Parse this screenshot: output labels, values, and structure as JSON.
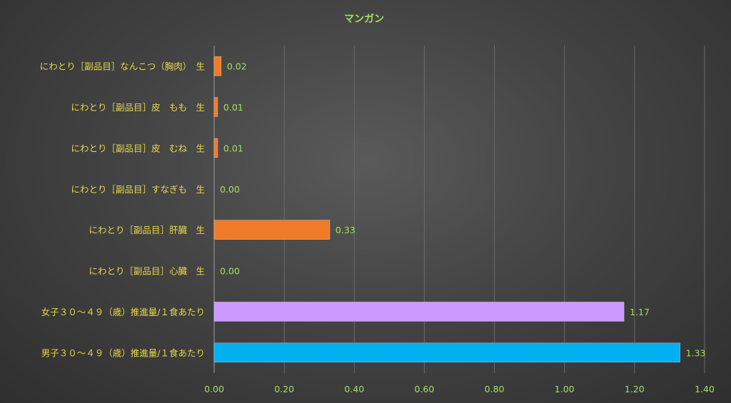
{
  "chart_data": {
    "type": "bar",
    "orientation": "horizontal",
    "title": "マンガン",
    "xlim": [
      0,
      1.4
    ],
    "xticks": [
      "0.00",
      "0.20",
      "0.40",
      "0.60",
      "0.80",
      "1.00",
      "1.20",
      "1.40"
    ],
    "grid": true,
    "categories": [
      "にわとり［副品目］なんこつ（胸肉）　生",
      "にわとり［副品目］皮　もも　生",
      "にわとり［副品目］皮　むね　生",
      "にわとり［副品目］すなぎも　生",
      "にわとり［副品目］肝臓　生",
      "にわとり［副品目］心臓　生",
      "女子３０～４９（歳）推進量/１食あたり",
      "男子３０～４９（歳）推進量/１食あたり"
    ],
    "values": [
      0.02,
      0.01,
      0.01,
      0.0,
      0.33,
      0.0,
      1.17,
      1.33
    ],
    "data_labels": [
      "0.02",
      "0.01",
      "0.01",
      "0.00",
      "0.33",
      "0.00",
      "1.17",
      "1.33"
    ],
    "colors": [
      "#f07a28",
      "#f07a28",
      "#f07a28",
      "#f07a28",
      "#f07a28",
      "#f07a28",
      "#cc99ff",
      "#00b0f0"
    ]
  }
}
